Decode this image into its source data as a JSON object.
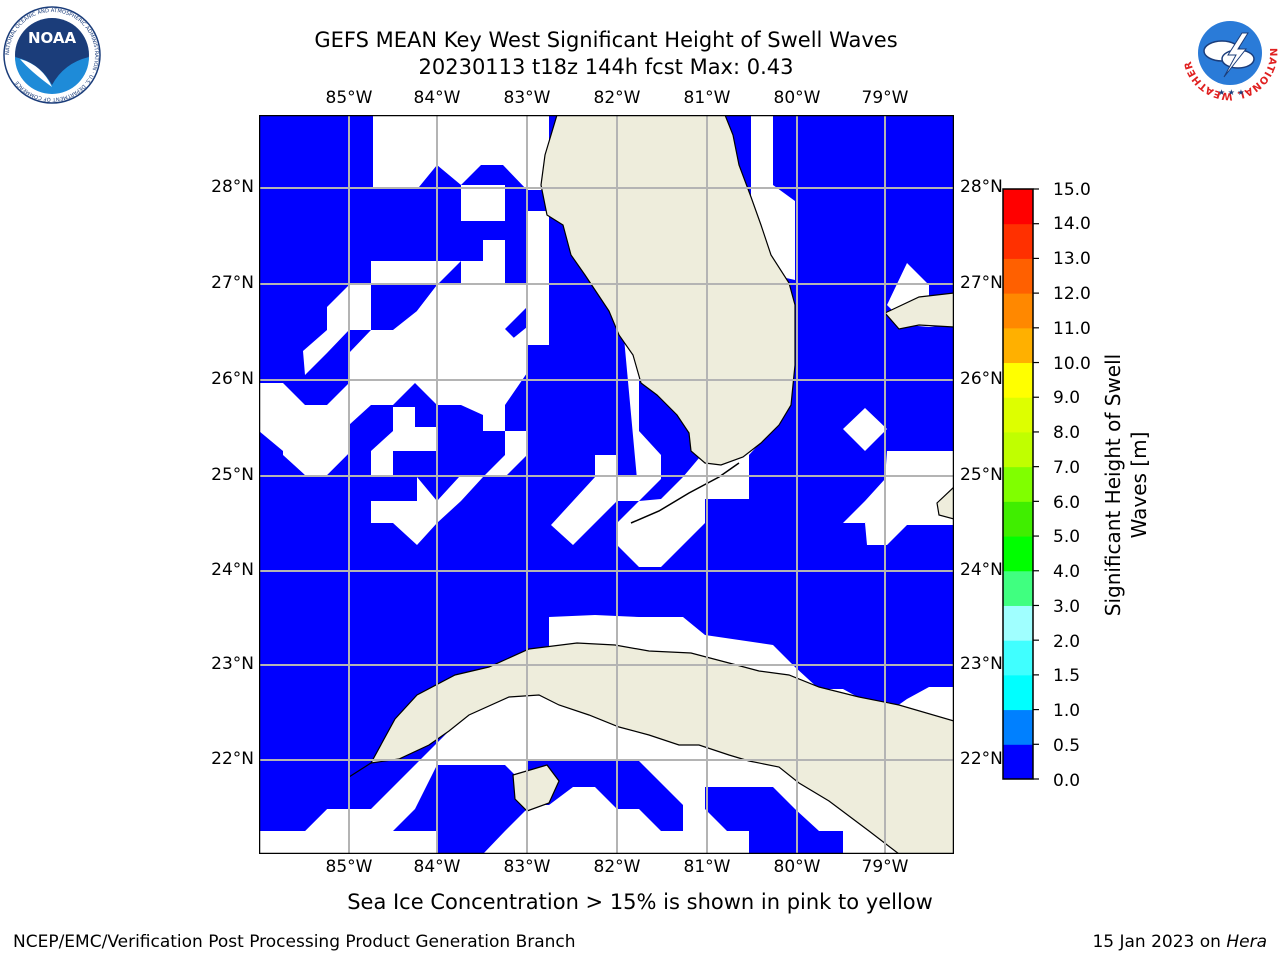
{
  "title": {
    "line1": "GEFS MEAN Key West Significant Height of Swell Waves",
    "line2": "20230113 t18z 144h fcst   Max: 0.43"
  },
  "map": {
    "lon_ticks": [
      "85°W",
      "84°W",
      "83°W",
      "82°W",
      "81°W",
      "80°W",
      "79°W"
    ],
    "lat_ticks": [
      "28°N",
      "27°N",
      "26°N",
      "25°N",
      "24°N",
      "23°N",
      "22°N"
    ],
    "colors": {
      "field": "#0000ff",
      "land": "#eeeddc",
      "grid": "#b4b4b4"
    }
  },
  "colorbar": {
    "label_line1": "Significant Height of Swell",
    "label_line2": "Waves [m]",
    "ticks": [
      "15.0",
      "14.0",
      "13.0",
      "12.0",
      "11.0",
      "10.0",
      "9.0",
      "8.0",
      "7.0",
      "6.0",
      "5.0",
      "4.0",
      "3.0",
      "2.0",
      "1.5",
      "1.0",
      "0.5",
      "0.0"
    ],
    "colors": [
      "#0000ff",
      "#0080ff",
      "#00ffff",
      "#40ffff",
      "#80ffff",
      "#a0ffff",
      "#40ff80",
      "#00ff00",
      "#40ee00",
      "#80ff00",
      "#c0ff00",
      "#ddff00",
      "#ffff00",
      "#ffdd00",
      "#ffb000",
      "#ff8800",
      "#ff6000",
      "#ff3000",
      "#ff0000"
    ]
  },
  "note": "Sea Ice Concentration > 15% is shown in pink to yellow",
  "footer": {
    "left": "NCEP/EMC/Verification Post Processing Product Generation Branch",
    "right_prefix": "15 Jan 2023 on ",
    "right_host": "Hera"
  },
  "logos": {
    "noaa": "NOAA",
    "noaa_ring": "NATIONAL OCEANIC AND ATMOSPHERIC ADMINISTRATION · U.S. DEPARTMENT OF COMMERCE",
    "nws_ring": "NATIONAL WEATHER SERVICE"
  }
}
